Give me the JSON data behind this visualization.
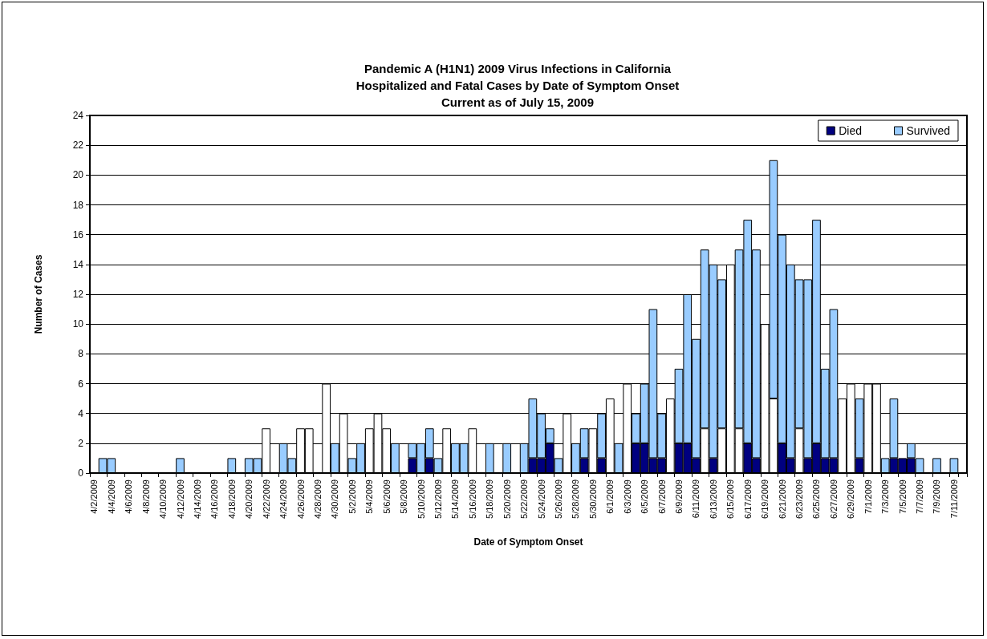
{
  "chart_data": {
    "type": "bar",
    "title": "Pandemic A (H1N1) 2009 Virus Infections in California\nHospitalized and Fatal Cases by Date of Symptom Onset\nCurrent as of July 15, 2009",
    "xlabel": "Date of Symptom Onset",
    "ylabel": "Number of Cases",
    "categories": [
      "4/2/2009",
      null,
      "4/4/2009",
      null,
      "4/6/2009",
      null,
      "4/8/2009",
      null,
      "4/10/2009",
      null,
      "4/12/2009",
      null,
      "4/14/2009",
      null,
      "4/16/2009",
      null,
      "4/18/2009",
      null,
      "4/20/2009",
      null,
      "4/22/2009",
      null,
      "4/24/2009",
      null,
      "4/26/2009",
      null,
      "4/28/2009",
      null,
      "4/30/2009",
      null,
      "5/2/2009",
      null,
      "5/4/2009",
      null,
      "5/6/2009",
      null,
      "5/8/2009",
      null,
      "5/10/2009",
      null,
      "5/12/2009",
      null,
      "5/14/2009",
      null,
      "5/16/2009",
      null,
      "5/18/2009",
      null,
      "5/20/2009",
      null,
      "5/22/2009",
      null,
      "5/24/2009",
      null,
      "5/26/2009",
      null,
      "5/28/2009",
      null,
      "5/30/2009",
      null,
      "6/1/2009",
      null,
      "6/3/2009",
      null,
      "6/5/2009",
      null,
      "6/7/2009",
      null,
      "6/9/2009",
      null,
      "6/11/2009",
      null,
      "6/13/2009",
      null,
      "6/15/2009",
      null,
      "6/17/2009",
      null,
      "6/19/2009",
      null,
      "6/21/2009",
      null,
      "6/23/2009",
      null,
      "6/25/2009",
      null,
      "6/27/2009",
      null,
      "6/29/2009",
      null,
      "7/1/2009",
      null,
      "7/3/2009",
      null,
      "7/5/2009",
      null,
      "7/7/2009",
      null,
      "7/9/2009",
      null,
      "7/11/2009",
      null
    ],
    "stacked": true,
    "series": [
      {
        "name": "Died",
        "color": "#000080",
        "values": [
          0,
          0,
          0,
          0,
          0,
          0,
          0,
          0,
          0,
          0,
          0,
          0,
          0,
          0,
          0,
          0,
          0,
          0,
          0,
          0,
          0,
          0,
          0,
          0,
          0,
          0,
          0,
          0,
          0,
          0,
          0,
          0,
          0,
          0,
          0,
          0,
          0,
          1,
          0,
          1,
          0,
          0,
          0,
          0,
          0,
          0,
          0,
          0,
          0,
          0,
          0,
          1,
          1,
          2,
          0,
          0,
          0,
          1,
          0,
          1,
          0,
          0,
          0,
          2,
          2,
          1,
          1,
          0,
          2,
          2,
          1,
          3,
          1,
          3,
          0,
          3,
          2,
          1,
          0,
          5,
          2,
          1,
          3,
          1,
          2,
          1,
          1,
          0,
          0,
          1,
          0,
          0,
          0,
          1,
          1,
          1,
          0,
          0,
          0,
          0,
          0,
          0
        ],
        "colors": [
          "#000080",
          "#000080",
          "#000080",
          "#000080",
          "#000080",
          "#000080",
          "#000080",
          "#000080",
          "#000080",
          "#000080",
          "#000080",
          "#000080",
          "#000080",
          "#000080",
          "#000080",
          "#000080",
          "#000080",
          "#000080",
          "#000080",
          "#000080",
          "#000080",
          "#000080",
          "#000080",
          "#000080",
          "#000080",
          "#000080",
          "#000080",
          "#000080",
          "#000080",
          "#000080",
          "#000080",
          "#000080",
          "#000080",
          "#000080",
          "#000080",
          "#000080",
          "#000080",
          "#000080",
          "#000080",
          "#000080",
          "#000080",
          "#000080",
          "#000080",
          "#000080",
          "#000080",
          "#000080",
          "#000080",
          "#000080",
          "#000080",
          "#000080",
          "#000080",
          "#000080",
          "#000080",
          "#000080",
          "#000080",
          "#000080",
          "#000080",
          "#000080",
          "#000080",
          "#000080",
          "#000080",
          "#000080",
          "#000080",
          "#000080",
          "#000080",
          "#000080",
          "#000080",
          "#000080",
          "#000080",
          "#000080",
          "#000080",
          "#ffffff",
          "#000080",
          "#ffffff",
          "#000080",
          "#ffffff",
          "#000080",
          "#000080",
          "#000080",
          "#ffffff",
          "#000080",
          "#000080",
          "#ffffff",
          "#000080",
          "#000080",
          "#000080",
          "#000080",
          "#000080",
          "#000080",
          "#000080",
          "#000080",
          "#000080",
          "#000080",
          "#000080",
          "#000080",
          "#000080",
          "#000080",
          "#000080",
          "#000080",
          "#000080",
          "#000080",
          "#000080"
        ]
      },
      {
        "name": "Survived",
        "color": "#99ccff",
        "values": [
          0,
          1,
          1,
          0,
          0,
          0,
          0,
          0,
          0,
          0,
          1,
          0,
          0,
          0,
          0,
          0,
          1,
          0,
          1,
          1,
          3,
          0,
          2,
          1,
          3,
          3,
          0,
          6,
          2,
          4,
          1,
          2,
          3,
          4,
          3,
          2,
          0,
          1,
          2,
          2,
          1,
          3,
          2,
          2,
          3,
          0,
          2,
          0,
          2,
          0,
          2,
          4,
          3,
          1,
          1,
          4,
          2,
          2,
          3,
          3,
          5,
          2,
          6,
          2,
          4,
          10,
          3,
          5,
          5,
          10,
          8,
          12,
          13,
          10,
          14,
          12,
          15,
          14,
          10,
          16,
          14,
          13,
          10,
          12,
          15,
          6,
          10,
          5,
          6,
          4,
          6,
          6,
          1,
          4,
          0,
          1,
          1,
          0,
          1,
          0,
          1,
          0
        ],
        "colors": [
          "#99ccff",
          "#99ccff",
          "#99ccff",
          "#99ccff",
          "#99ccff",
          "#99ccff",
          "#99ccff",
          "#99ccff",
          "#99ccff",
          "#99ccff",
          "#99ccff",
          "#99ccff",
          "#99ccff",
          "#99ccff",
          "#99ccff",
          "#99ccff",
          "#99ccff",
          "#99ccff",
          "#99ccff",
          "#99ccff",
          "#ffffff",
          "#99ccff",
          "#99ccff",
          "#99ccff",
          "#ffffff",
          "#ffffff",
          "#99ccff",
          "#ffffff",
          "#99ccff",
          "#ffffff",
          "#99ccff",
          "#99ccff",
          "#ffffff",
          "#ffffff",
          "#ffffff",
          "#99ccff",
          "#99ccff",
          "#99ccff",
          "#99ccff",
          "#99ccff",
          "#99ccff",
          "#ffffff",
          "#99ccff",
          "#99ccff",
          "#ffffff",
          "#99ccff",
          "#99ccff",
          "#99ccff",
          "#99ccff",
          "#99ccff",
          "#99ccff",
          "#99ccff",
          "#99ccff",
          "#99ccff",
          "#99ccff",
          "#ffffff",
          "#99ccff",
          "#99ccff",
          "#ffffff",
          "#99ccff",
          "#ffffff",
          "#99ccff",
          "#ffffff",
          "#99ccff",
          "#99ccff",
          "#99ccff",
          "#99ccff",
          "#ffffff",
          "#99ccff",
          "#99ccff",
          "#99ccff",
          "#99ccff",
          "#99ccff",
          "#99ccff",
          "#ffffff",
          "#99ccff",
          "#99ccff",
          "#99ccff",
          "#ffffff",
          "#99ccff",
          "#99ccff",
          "#99ccff",
          "#99ccff",
          "#99ccff",
          "#99ccff",
          "#99ccff",
          "#99ccff",
          "#ffffff",
          "#ffffff",
          "#99ccff",
          "#ffffff",
          "#ffffff",
          "#99ccff",
          "#99ccff",
          "#99ccff",
          "#99ccff",
          "#99ccff",
          "#99ccff",
          "#99ccff",
          "#99ccff",
          "#99ccff",
          "#99ccff"
        ]
      }
    ],
    "ylim": [
      0,
      24
    ],
    "yticks": [
      0,
      2,
      4,
      6,
      8,
      10,
      12,
      14,
      16,
      18,
      20,
      22,
      24
    ],
    "grid": "y",
    "legend": "top right"
  }
}
